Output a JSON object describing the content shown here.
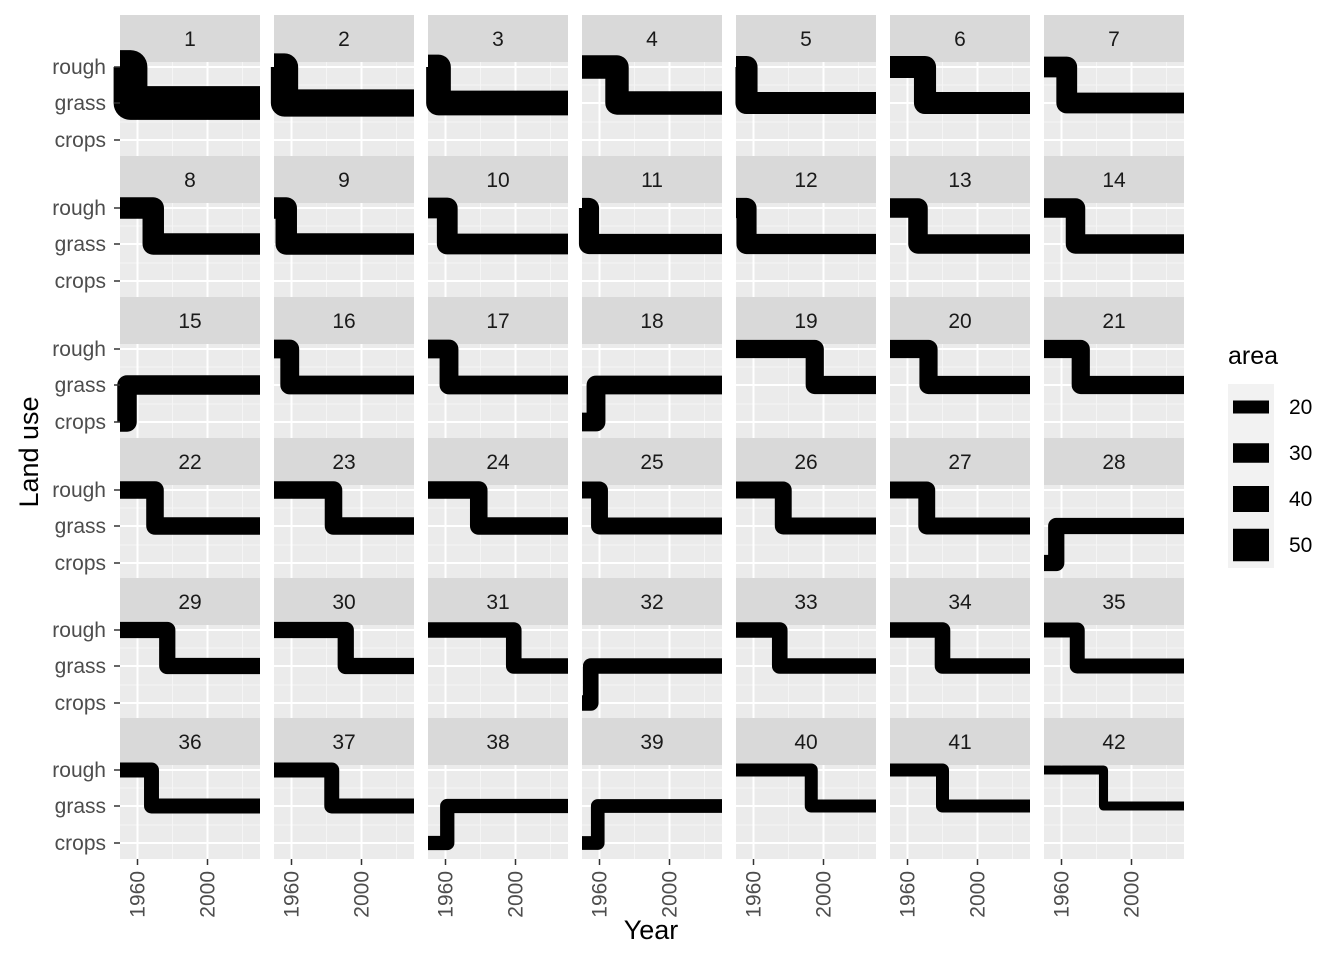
{
  "chart_data": {
    "type": "line",
    "facet_type": "wrap",
    "facet_columns": 7,
    "x_label": "Year",
    "y_label": "Land use",
    "x_ticks": [
      1960,
      2000
    ],
    "x_range": [
      1950,
      2030
    ],
    "y_categories": [
      "crops",
      "grass",
      "rough"
    ],
    "legend": {
      "title": "area",
      "entries": [
        20,
        30,
        40,
        50
      ]
    },
    "colors": {
      "panel_bg": "#ebebeb",
      "strip_bg": "#d9d9d9",
      "grid_major": "#ffffff",
      "grid_minor": "#f5f5f5",
      "line": "#000000",
      "legend_key_bg": "#f2f2f2"
    },
    "grid": true,
    "legend_position": "right",
    "series": [
      {
        "name": "1",
        "area": 52,
        "from": "rough",
        "to": "grass",
        "change_year": 1956
      },
      {
        "name": "2",
        "area": 42,
        "from": "rough",
        "to": "grass",
        "change_year": 1956
      },
      {
        "name": "3",
        "area": 38,
        "from": "rough",
        "to": "grass",
        "change_year": 1956
      },
      {
        "name": "4",
        "area": 36,
        "from": "rough",
        "to": "grass",
        "change_year": 1970
      },
      {
        "name": "5",
        "area": 34,
        "from": "rough",
        "to": "grass",
        "change_year": 1956
      },
      {
        "name": "6",
        "area": 34,
        "from": "rough",
        "to": "grass",
        "change_year": 1970
      },
      {
        "name": "7",
        "area": 32,
        "from": "rough",
        "to": "grass",
        "change_year": 1963
      },
      {
        "name": "8",
        "area": 33,
        "from": "rough",
        "to": "grass",
        "change_year": 1969
      },
      {
        "name": "9",
        "area": 33,
        "from": "rough",
        "to": "grass",
        "change_year": 1957
      },
      {
        "name": "10",
        "area": 32,
        "from": "rough",
        "to": "grass",
        "change_year": 1961
      },
      {
        "name": "11",
        "area": 31,
        "from": "rough",
        "to": "grass",
        "change_year": 1954
      },
      {
        "name": "12",
        "area": 31,
        "from": "rough",
        "to": "grass",
        "change_year": 1956
      },
      {
        "name": "13",
        "area": 30,
        "from": "rough",
        "to": "grass",
        "change_year": 1966
      },
      {
        "name": "14",
        "area": 30,
        "from": "rough",
        "to": "grass",
        "change_year": 1968
      },
      {
        "name": "15",
        "area": 30,
        "from": "crops",
        "to": "grass",
        "change_year": 1954
      },
      {
        "name": "16",
        "area": 29,
        "from": "rough",
        "to": "grass",
        "change_year": 1959
      },
      {
        "name": "17",
        "area": 29,
        "from": "rough",
        "to": "grass",
        "change_year": 1962
      },
      {
        "name": "18",
        "area": 29,
        "from": "crops",
        "to": "grass",
        "change_year": 1958
      },
      {
        "name": "19",
        "area": 28,
        "from": "rough",
        "to": "grass",
        "change_year": 1995
      },
      {
        "name": "20",
        "area": 28,
        "from": "rough",
        "to": "grass",
        "change_year": 1972
      },
      {
        "name": "21",
        "area": 28,
        "from": "rough",
        "to": "grass",
        "change_year": 1971
      },
      {
        "name": "22",
        "area": 27,
        "from": "rough",
        "to": "grass",
        "change_year": 1970
      },
      {
        "name": "23",
        "area": 27,
        "from": "rough",
        "to": "grass",
        "change_year": 1984
      },
      {
        "name": "24",
        "area": 27,
        "from": "rough",
        "to": "grass",
        "change_year": 1979
      },
      {
        "name": "25",
        "area": 26,
        "from": "rough",
        "to": "grass",
        "change_year": 1960
      },
      {
        "name": "26",
        "area": 26,
        "from": "rough",
        "to": "grass",
        "change_year": 1977
      },
      {
        "name": "27",
        "area": 26,
        "from": "rough",
        "to": "grass",
        "change_year": 1971
      },
      {
        "name": "28",
        "area": 25,
        "from": "crops",
        "to": "grass",
        "change_year": 1957
      },
      {
        "name": "29",
        "area": 25,
        "from": "rough",
        "to": "grass",
        "change_year": 1977
      },
      {
        "name": "30",
        "area": 25,
        "from": "rough",
        "to": "grass",
        "change_year": 1991
      },
      {
        "name": "31",
        "area": 24,
        "from": "rough",
        "to": "grass",
        "change_year": 1999
      },
      {
        "name": "32",
        "area": 24,
        "from": "crops",
        "to": "grass",
        "change_year": 1955
      },
      {
        "name": "33",
        "area": 24,
        "from": "rough",
        "to": "grass",
        "change_year": 1975
      },
      {
        "name": "34",
        "area": 24,
        "from": "rough",
        "to": "grass",
        "change_year": 1980
      },
      {
        "name": "35",
        "area": 23,
        "from": "rough",
        "to": "grass",
        "change_year": 1969
      },
      {
        "name": "36",
        "area": 23,
        "from": "rough",
        "to": "grass",
        "change_year": 1968
      },
      {
        "name": "37",
        "area": 23,
        "from": "rough",
        "to": "grass",
        "change_year": 1983
      },
      {
        "name": "38",
        "area": 22,
        "from": "crops",
        "to": "grass",
        "change_year": 1961
      },
      {
        "name": "39",
        "area": 21,
        "from": "crops",
        "to": "grass",
        "change_year": 1959
      },
      {
        "name": "40",
        "area": 20,
        "from": "rough",
        "to": "grass",
        "change_year": 1993
      },
      {
        "name": "41",
        "area": 20,
        "from": "rough",
        "to": "grass",
        "change_year": 1980
      },
      {
        "name": "42",
        "area": 14,
        "from": "rough",
        "to": "grass",
        "change_year": 1984
      }
    ]
  }
}
